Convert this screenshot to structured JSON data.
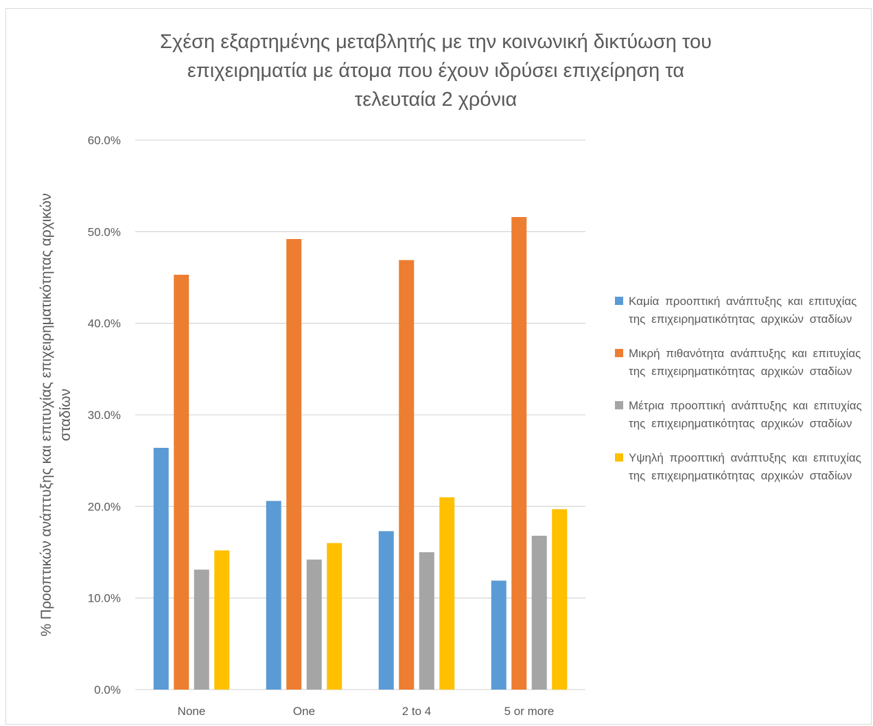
{
  "chart_data": {
    "type": "bar",
    "title": "Σχέση εξαρτημένης μεταβλητής με την κοινωνική δικτύωση του επιχειρηματία με άτομα που έχουν ιδρύσει επιχείρηση τα τελευταία 2 χρόνια",
    "title_lines": [
      "Σχέση εξαρτημένης μεταβλητής με την κοινωνική δικτύωση του",
      "επιχειρηματία με άτομα που έχουν ιδρύσει επιχείρηση τα",
      "τελευταία 2 χρόνια"
    ],
    "xlabel": "",
    "ylabel": "% Προοπτικών ανάπτυξης και επιτυχίας επιχειρηματικότητας αρχικών σταδίων",
    "ylabel_lines": [
      "% Προοπτικών ανάπτυξης και επιτυχίας επιχειρηματικότητας αρχικών",
      "σταδίων"
    ],
    "categories": [
      "None",
      "One",
      "2 to 4",
      "5 or more"
    ],
    "ylim": [
      0,
      60
    ],
    "yticks": [
      0,
      10,
      20,
      30,
      40,
      50,
      60
    ],
    "ytick_labels": [
      "0.0%",
      "10.0%",
      "20.0%",
      "30.0%",
      "40.0%",
      "50.0%",
      "60.0%"
    ],
    "grid": true,
    "legend_position": "right",
    "series": [
      {
        "name": "Καμία προοπτική ανάπτυξης και επιτυχίας της επιχειρηματικότητας αρχικών σταδίων",
        "color": "#5b9bd5",
        "values": [
          26.4,
          20.6,
          17.3,
          11.9
        ]
      },
      {
        "name": "Μικρή πιθανότητα ανάπτυξης και επιτυχίας της επιχειρηματικότητας αρχικών σταδίων",
        "color": "#ed7d31",
        "values": [
          45.3,
          49.2,
          46.9,
          51.6
        ]
      },
      {
        "name": "Μέτρια προοπτική ανάπτυξης και επιτυχίας της επιχειρηματικότητας αρχικών σταδίων",
        "color": "#a5a5a5",
        "values": [
          13.1,
          14.2,
          15.0,
          16.8
        ]
      },
      {
        "name": "Υψηλή προοπτική ανάπτυξης και επιτυχίας της επιχειρηματικότητας αρχικών σταδίων",
        "color": "#ffc000",
        "values": [
          15.2,
          16.0,
          21.0,
          19.7
        ]
      }
    ]
  }
}
